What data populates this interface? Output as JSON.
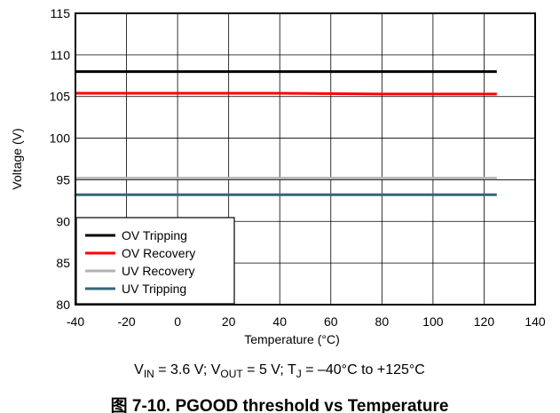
{
  "chart_data": {
    "type": "line",
    "xlabel": "Temperature (°C)",
    "ylabel": "Voltage (V)",
    "xlim": [
      -40,
      140
    ],
    "ylim": [
      80,
      115
    ],
    "xticks": [
      -40,
      -20,
      0,
      20,
      40,
      60,
      80,
      100,
      120,
      140
    ],
    "yticks": [
      80,
      85,
      90,
      95,
      100,
      105,
      110,
      115
    ],
    "grid": true,
    "legend_placement": "bottom-left",
    "series": [
      {
        "name": "OV Tripping",
        "color": "#000000",
        "x": [
          -40,
          0,
          40,
          80,
          125
        ],
        "y": [
          108.0,
          108.0,
          108.0,
          108.0,
          108.0
        ]
      },
      {
        "name": "OV Recovery",
        "color": "#ff0000",
        "x": [
          -40,
          0,
          40,
          80,
          125
        ],
        "y": [
          105.4,
          105.4,
          105.4,
          105.3,
          105.3
        ]
      },
      {
        "name": "UV Recovery",
        "color": "#b3b3b3",
        "x": [
          -40,
          0,
          40,
          80,
          125
        ],
        "y": [
          95.2,
          95.2,
          95.2,
          95.2,
          95.2
        ]
      },
      {
        "name": "UV Tripping",
        "color": "#336677",
        "x": [
          -40,
          0,
          40,
          80,
          125
        ],
        "y": [
          93.2,
          93.2,
          93.2,
          93.2,
          93.2
        ]
      }
    ]
  },
  "caption": {
    "parts": [
      {
        "text": "V",
        "sub": false
      },
      {
        "text": "IN",
        "sub": true
      },
      {
        "text": " = 3.6 V; V",
        "sub": false
      },
      {
        "text": "OUT",
        "sub": true
      },
      {
        "text": " = 5 V; T",
        "sub": false
      },
      {
        "text": "J",
        "sub": true
      },
      {
        "text": " = –40°C to +125°C",
        "sub": false
      }
    ]
  },
  "figure_title": "图 7-10. PGOOD threshold vs Temperature"
}
